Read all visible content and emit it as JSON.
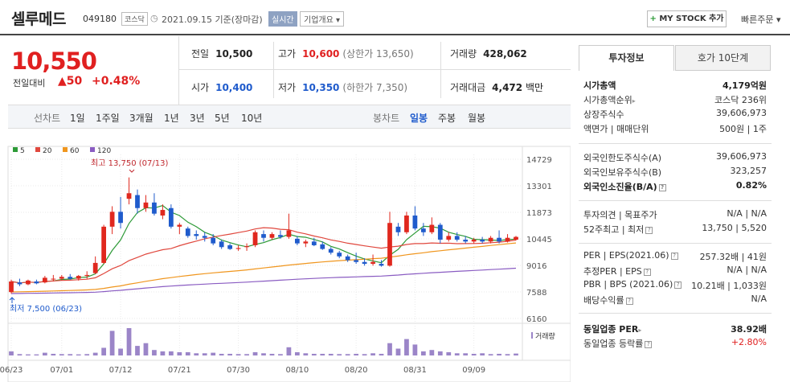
{
  "header": {
    "stock_name": "셀루메드",
    "stock_code": "049180",
    "market": "코스닥",
    "date": "2021.09.15 기준(장마감)",
    "realtime": "실시간",
    "corp_info": "기업개요 ▾",
    "mystock_plus": "+",
    "mystock_label": "MY STOCK 추가",
    "quick_order": "빠른주문 ▾"
  },
  "price": {
    "current": "10,550",
    "compare_label": "전일대비",
    "change": "▲50",
    "change_pct": "+0.48%"
  },
  "quote": {
    "prev_label": "전일",
    "prev": "10,500",
    "high_label": "고가",
    "high": "10,600",
    "upper_limit": "(상한가 13,650)",
    "volume_label": "거래량",
    "volume": "428,062",
    "open_label": "시가",
    "open": "10,400",
    "low_label": "저가",
    "low": "10,350",
    "lower_limit": "(하한가 7,350)",
    "amount_label": "거래대금",
    "amount": "4,472",
    "amount_unit": "백만"
  },
  "period_bar": {
    "line_chart": "선차트",
    "periods": [
      "1일",
      "1주일",
      "3개월",
      "1년",
      "3년",
      "5년",
      "10년"
    ],
    "candle_chart": "봉차트",
    "candles": [
      "일봉",
      "주봉",
      "월봉"
    ],
    "selected_candle": "일봉"
  },
  "chart_data": {
    "type": "candlestick",
    "legend": [
      {
        "name": "5",
        "color": "#2d9a37"
      },
      {
        "name": "20",
        "color": "#e0483e"
      },
      {
        "name": "60",
        "color": "#f0961e"
      },
      {
        "name": "120",
        "color": "#8a5cc2"
      }
    ],
    "y_ticks": [
      14729,
      13301,
      11873,
      10445,
      9016,
      7588,
      6160
    ],
    "ylim": [
      6160,
      14729
    ],
    "x_ticks": [
      "06/23",
      "07/01",
      "07/12",
      "07/21",
      "07/30",
      "08/10",
      "08/20",
      "08/31",
      "09/09"
    ],
    "x_tick_index": [
      0,
      6,
      13,
      20,
      27,
      34,
      41,
      48,
      55
    ],
    "high_annotation": "최고 13,750 (07/13)",
    "low_annotation": "최저 7,500 (06/23)",
    "volume_label": "거래량",
    "candles": [
      {
        "o": 7580,
        "h": 8250,
        "l": 7500,
        "c": 8150
      },
      {
        "o": 8100,
        "h": 8300,
        "l": 7900,
        "c": 8000
      },
      {
        "o": 8000,
        "h": 8250,
        "l": 7950,
        "c": 8200
      },
      {
        "o": 8150,
        "h": 8250,
        "l": 8000,
        "c": 8050
      },
      {
        "o": 8100,
        "h": 8450,
        "l": 8050,
        "c": 8350
      },
      {
        "o": 8300,
        "h": 8500,
        "l": 8150,
        "c": 8300
      },
      {
        "o": 8300,
        "h": 8500,
        "l": 8200,
        "c": 8400
      },
      {
        "o": 8400,
        "h": 8550,
        "l": 8250,
        "c": 8300
      },
      {
        "o": 8300,
        "h": 8500,
        "l": 8200,
        "c": 8450
      },
      {
        "o": 8450,
        "h": 8700,
        "l": 8300,
        "c": 8500
      },
      {
        "o": 8600,
        "h": 9500,
        "l": 8550,
        "c": 9150
      },
      {
        "o": 9150,
        "h": 11200,
        "l": 9100,
        "c": 11100
      },
      {
        "o": 11100,
        "h": 12200,
        "l": 10700,
        "c": 11900
      },
      {
        "o": 11900,
        "h": 12700,
        "l": 11000,
        "c": 11300
      },
      {
        "o": 12600,
        "h": 13750,
        "l": 12300,
        "c": 12900
      },
      {
        "o": 12800,
        "h": 13100,
        "l": 11800,
        "c": 12100
      },
      {
        "o": 12100,
        "h": 12800,
        "l": 11900,
        "c": 12400
      },
      {
        "o": 12400,
        "h": 12900,
        "l": 11700,
        "c": 11800
      },
      {
        "o": 11700,
        "h": 12300,
        "l": 11500,
        "c": 12000
      },
      {
        "o": 12100,
        "h": 12300,
        "l": 11000,
        "c": 11100
      },
      {
        "o": 11100,
        "h": 11300,
        "l": 10700,
        "c": 11200
      },
      {
        "o": 11000,
        "h": 11100,
        "l": 10500,
        "c": 10600
      },
      {
        "o": 10700,
        "h": 10900,
        "l": 10400,
        "c": 10600
      },
      {
        "o": 10600,
        "h": 10800,
        "l": 10300,
        "c": 10500
      },
      {
        "o": 10500,
        "h": 10700,
        "l": 10100,
        "c": 10200
      },
      {
        "o": 10300,
        "h": 10400,
        "l": 9900,
        "c": 10000
      },
      {
        "o": 10100,
        "h": 10200,
        "l": 9850,
        "c": 9900
      },
      {
        "o": 9900,
        "h": 10100,
        "l": 9800,
        "c": 9950
      },
      {
        "o": 10000,
        "h": 10200,
        "l": 9800,
        "c": 10050
      },
      {
        "o": 10100,
        "h": 10900,
        "l": 10000,
        "c": 10800
      },
      {
        "o": 10700,
        "h": 10900,
        "l": 10300,
        "c": 10500
      },
      {
        "o": 10500,
        "h": 10800,
        "l": 10400,
        "c": 10700
      },
      {
        "o": 10650,
        "h": 10900,
        "l": 10450,
        "c": 10550
      },
      {
        "o": 10550,
        "h": 11800,
        "l": 10450,
        "c": 10900
      },
      {
        "o": 10450,
        "h": 10600,
        "l": 10100,
        "c": 10200
      },
      {
        "o": 10200,
        "h": 10400,
        "l": 10000,
        "c": 10300
      },
      {
        "o": 10300,
        "h": 10500,
        "l": 10050,
        "c": 10100
      },
      {
        "o": 10150,
        "h": 10300,
        "l": 9850,
        "c": 9900
      },
      {
        "o": 9900,
        "h": 10000,
        "l": 9600,
        "c": 9700
      },
      {
        "o": 9700,
        "h": 9800,
        "l": 9400,
        "c": 9500
      },
      {
        "o": 9500,
        "h": 9600,
        "l": 9200,
        "c": 9300
      },
      {
        "o": 9300,
        "h": 9700,
        "l": 9100,
        "c": 9200
      },
      {
        "o": 9200,
        "h": 9400,
        "l": 9000,
        "c": 9100
      },
      {
        "o": 9100,
        "h": 9600,
        "l": 9000,
        "c": 9200
      },
      {
        "o": 9100,
        "h": 9300,
        "l": 8950,
        "c": 9000
      },
      {
        "o": 9000,
        "h": 11900,
        "l": 8950,
        "c": 11300
      },
      {
        "o": 11100,
        "h": 11300,
        "l": 10600,
        "c": 10800
      },
      {
        "o": 10800,
        "h": 11900,
        "l": 10700,
        "c": 11700
      },
      {
        "o": 11700,
        "h": 12200,
        "l": 10900,
        "c": 11000
      },
      {
        "o": 11000,
        "h": 11300,
        "l": 10600,
        "c": 10800
      },
      {
        "o": 10800,
        "h": 11600,
        "l": 10700,
        "c": 11200
      },
      {
        "o": 11200,
        "h": 11300,
        "l": 10200,
        "c": 10400
      },
      {
        "o": 10400,
        "h": 10800,
        "l": 10300,
        "c": 10600
      },
      {
        "o": 10600,
        "h": 10800,
        "l": 10300,
        "c": 10400
      },
      {
        "o": 10400,
        "h": 10600,
        "l": 10200,
        "c": 10300
      },
      {
        "o": 10300,
        "h": 10500,
        "l": 10200,
        "c": 10400
      },
      {
        "o": 10400,
        "h": 10550,
        "l": 10200,
        "c": 10300
      },
      {
        "o": 10300,
        "h": 10600,
        "l": 10200,
        "c": 10500
      },
      {
        "o": 10500,
        "h": 10900,
        "l": 10200,
        "c": 10300
      },
      {
        "o": 10300,
        "h": 10700,
        "l": 10250,
        "c": 10500
      },
      {
        "o": 10400,
        "h": 10600,
        "l": 10350,
        "c": 10550
      }
    ],
    "volume": [
      0.15,
      0.05,
      0.04,
      0.04,
      0.1,
      0.06,
      0.05,
      0.05,
      0.04,
      0.05,
      0.1,
      0.28,
      0.9,
      0.25,
      1.0,
      0.35,
      0.45,
      0.2,
      0.15,
      0.15,
      0.12,
      0.12,
      0.08,
      0.08,
      0.1,
      0.06,
      0.06,
      0.05,
      0.05,
      0.12,
      0.08,
      0.06,
      0.05,
      0.3,
      0.12,
      0.08,
      0.06,
      0.06,
      0.06,
      0.05,
      0.05,
      0.06,
      0.05,
      0.08,
      0.06,
      0.45,
      0.25,
      0.6,
      0.4,
      0.15,
      0.2,
      0.15,
      0.12,
      0.08,
      0.08,
      0.06,
      0.08,
      0.05,
      0.06,
      0.05,
      0.07
    ]
  },
  "side": {
    "tab_active": "투자정보",
    "tab_other": "호가 10단계",
    "rows1": [
      {
        "k": "시가총액",
        "v": "4,179억원",
        "bold": true
      },
      {
        "k": "시가총액순위",
        "arrow": "▸",
        "v": "코스닥 236위"
      },
      {
        "k": "상장주식수",
        "v": "39,606,973"
      },
      {
        "k": "액면가 | 매매단위",
        "v": "500원 | 1주"
      }
    ],
    "rows2": [
      {
        "k": "외국인한도주식수(A)",
        "v": "39,606,973"
      },
      {
        "k": "외국인보유주식수(B)",
        "v": "323,257"
      },
      {
        "k": "외국인소진율(B/A)",
        "q": "?",
        "v": "0.82%",
        "bold": true
      }
    ],
    "rows3": [
      {
        "k": "투자의견 | 목표주가",
        "v": "N/A | N/A"
      },
      {
        "k": "52주최고 | 최저",
        "q": "?",
        "v": "13,750 | 5,520"
      }
    ],
    "rows4": [
      {
        "k": "PER | EPS(2021.06)",
        "q": "?",
        "v": "257.32배 | 41원"
      },
      {
        "k": "추정PER | EPS",
        "q": "?",
        "v": "N/A | N/A"
      },
      {
        "k": "PBR | BPS (2021.06)",
        "q": "?",
        "v": "10.21배 | 1,033원"
      },
      {
        "k": "배당수익률",
        "q": "?",
        "v": "N/A"
      }
    ],
    "rows5": [
      {
        "k": "동일업종 PER",
        "arrow": "▸",
        "v": "38.92배",
        "bold": true
      },
      {
        "k": "동일업종 등락률",
        "q": "?",
        "v": "+2.80%",
        "red": true
      }
    ]
  }
}
